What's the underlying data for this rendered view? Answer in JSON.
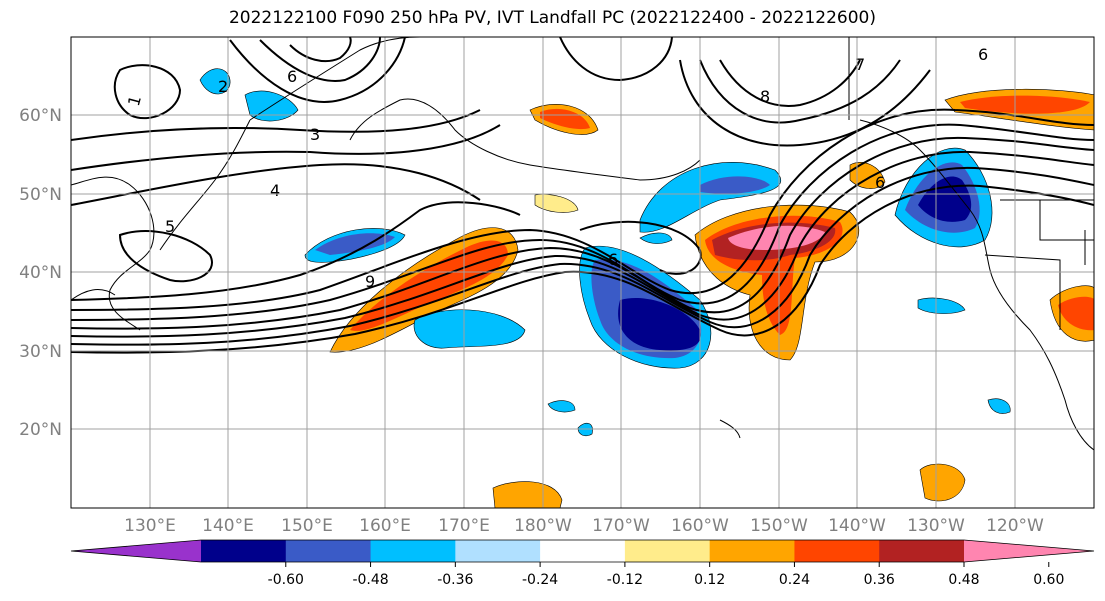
{
  "title": "2022122100 F090 250 hPa PV, IVT Landfall PC (2022122400 - 2022122600)",
  "map": {
    "lat_labels": [
      "60°N",
      "50°N",
      "40°N",
      "30°N",
      "20°N"
    ],
    "lon_labels": [
      "130°E",
      "140°E",
      "150°E",
      "160°E",
      "170°E",
      "180°W",
      "170°W",
      "160°W",
      "150°W",
      "140°W",
      "130°W",
      "120°W"
    ],
    "contour_labels": [
      "1",
      "2",
      "3",
      "4",
      "5",
      "6",
      "7",
      "8",
      "9"
    ]
  },
  "colorbar": {
    "tick_labels": [
      "-0.60",
      "-0.48",
      "-0.36",
      "-0.24",
      "-0.12",
      "0.12",
      "0.24",
      "0.36",
      "0.48",
      "0.60"
    ],
    "colors": [
      "#9932cc",
      "#00008b",
      "#3a5bc7",
      "#00bfff",
      "#b0e0ff",
      "#ffffff",
      "#ffec8b",
      "#ffa500",
      "#ff4500",
      "#b22222",
      "#ff85b0"
    ]
  },
  "colors": {
    "dark_neg": "#00008b",
    "mid_neg": "#3a5bc7",
    "light_neg": "#00bfff",
    "pale_neg": "#b0e0ff",
    "pale_pos": "#ffec8b",
    "orange": "#ffa500",
    "red_orange": "#ff4500",
    "dark_red": "#b22222",
    "pink": "#ff85b0",
    "grid": "#a0a0a0",
    "axis_label": "#808080"
  }
}
